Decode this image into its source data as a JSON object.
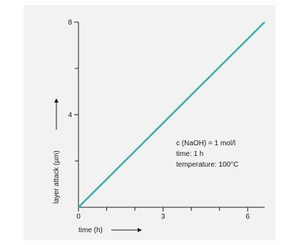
{
  "chart_data": {
    "type": "line",
    "xlabel": "time (h)",
    "ylabel": "layer attack (µm)",
    "xlim": [
      0,
      6.6
    ],
    "ylim": [
      0,
      8
    ],
    "x_ticks_major": [
      0,
      3,
      6
    ],
    "x_ticks_minor": [
      1,
      2,
      4,
      5
    ],
    "y_ticks_major": [
      4,
      8
    ],
    "y_ticks_minor": [
      2,
      6
    ],
    "series": [
      {
        "x": [
          0,
          6.6
        ],
        "y": [
          0,
          8
        ]
      }
    ],
    "annotations": [
      "c (NaOH) = 1 mol/l",
      "time: 1 h",
      "temperature: 100°C"
    ],
    "colors": {
      "line": "#3aafa9",
      "panel": "#f2f2f2",
      "axis": "#1a1a1a"
    },
    "grid": false
  }
}
